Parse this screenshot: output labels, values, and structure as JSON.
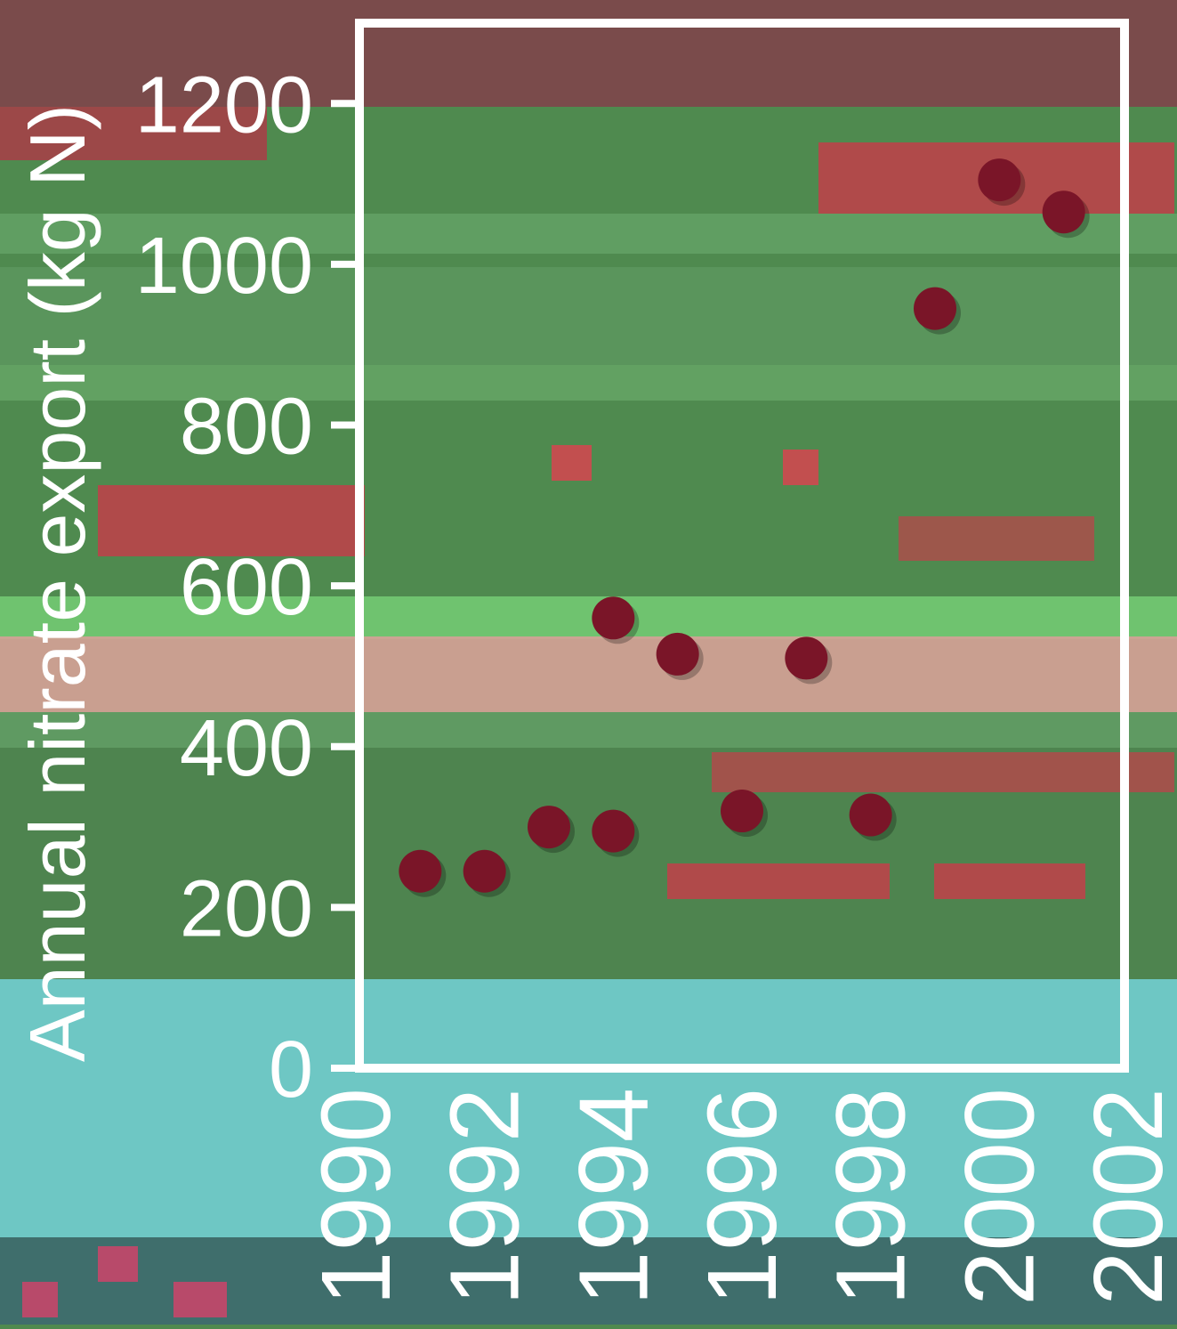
{
  "chart_data": {
    "type": "scatter",
    "title": "",
    "xlabel": "",
    "ylabel": "Annual nitrate export (kg N)",
    "xlim": [
      1990,
      2002
    ],
    "ylim": [
      0,
      1300
    ],
    "x_ticks": [
      "1990",
      "1992",
      "1994",
      "1996",
      "1998",
      "2000",
      "2002"
    ],
    "y_ticks": [
      "0",
      "200",
      "400",
      "600",
      "800",
      "1000",
      "1200"
    ],
    "grid": false,
    "legend": "none",
    "series": [
      {
        "points": [
          {
            "x": 1991,
            "y": 245
          },
          {
            "x": 1992,
            "y": 245
          },
          {
            "x": 1993,
            "y": 300
          },
          {
            "x": 1994,
            "y": 295
          },
          {
            "x": 1994,
            "y": 560
          },
          {
            "x": 1995,
            "y": 515
          },
          {
            "x": 1996,
            "y": 320
          },
          {
            "x": 1997,
            "y": 510
          },
          {
            "x": 1998,
            "y": 315
          },
          {
            "x": 1999,
            "y": 945
          },
          {
            "x": 2000,
            "y": 1105
          },
          {
            "x": 2001,
            "y": 1065
          }
        ]
      }
    ],
    "colors": {
      "marker": "#7a1528",
      "axis": "#ffffff",
      "text": "#ffffff"
    }
  }
}
